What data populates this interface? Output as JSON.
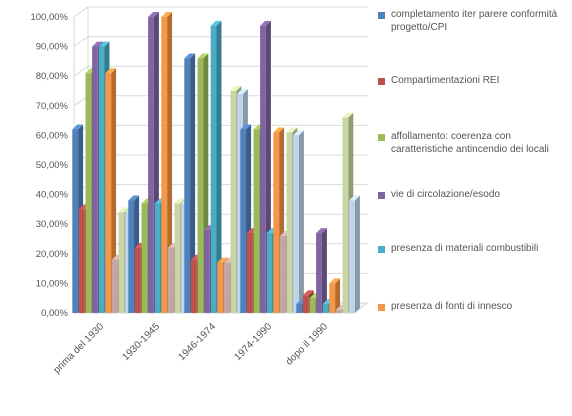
{
  "chart_data": {
    "type": "bar",
    "categories": [
      "prima del 1930",
      "1930-1945",
      "1946-1974",
      "1974-1990",
      "dopo il 1990"
    ],
    "y_ticks": [
      "0,00%",
      "10,00%",
      "20,00%",
      "30,00%",
      "40,00%",
      "50,00%",
      "60,00%",
      "70,00%",
      "80,00%",
      "90,00%",
      "100,00%"
    ],
    "ylim": [
      0,
      100
    ],
    "grid": true,
    "three_d": true,
    "legend_position": "right",
    "series": [
      {
        "name": "completamento iter parere conformità progetto/CPI",
        "color": "#4f81bd",
        "values": [
          62,
          38,
          86,
          62,
          3
        ]
      },
      {
        "name": "Compartimentazioni REI",
        "color": "#c0504d",
        "values": [
          35,
          22,
          18,
          27,
          6
        ]
      },
      {
        "name": "affollamento: coerenza con caratteristiche antincendio dei locali",
        "color": "#9bbb59",
        "values": [
          81,
          37,
          86,
          62,
          5
        ]
      },
      {
        "name": "vie di circolazione/esodo",
        "color": "#8064a2",
        "values": [
          90,
          100,
          28,
          97,
          27
        ]
      },
      {
        "name": "presenza di materiali combustibili",
        "color": "#4bacc6",
        "values": [
          90,
          37,
          97,
          27,
          3
        ]
      },
      {
        "name": "presenza di fonti di innesco",
        "color": "#f79646",
        "values": [
          81,
          100,
          17,
          61,
          10
        ]
      },
      {
        "name": "",
        "color": "#c4a5a5",
        "values": [
          18,
          22,
          17,
          26,
          1
        ]
      },
      {
        "name": "",
        "color": "#c8d6a3",
        "values": [
          34,
          37,
          75,
          61,
          66
        ]
      },
      {
        "name": "",
        "color": "#bcd3e8",
        "values": [
          34,
          37,
          74,
          60,
          38
        ]
      }
    ]
  },
  "legend": [
    {
      "label": "completamento iter parere conformità progetto/CPI",
      "color": "#4f81bd",
      "icon": "legend-swatch"
    },
    {
      "label": "Compartimentazioni REI",
      "color": "#c0504d",
      "icon": "legend-swatch"
    },
    {
      "label": "affollamento: coerenza con caratteristiche antincendio dei locali",
      "color": "#9bbb59",
      "icon": "legend-swatch"
    },
    {
      "label": "vie di circolazione/esodo",
      "color": "#8064a2",
      "icon": "legend-swatch"
    },
    {
      "label": "presenza di materiali combustibili",
      "color": "#4bacc6",
      "icon": "legend-swatch"
    },
    {
      "label": "presenza di fonti di innesco",
      "color": "#f79646",
      "icon": "legend-swatch"
    }
  ],
  "colors": {
    "gridline": "#d9d9d9",
    "axis_text": "#555555",
    "wall": "#ffffff"
  }
}
